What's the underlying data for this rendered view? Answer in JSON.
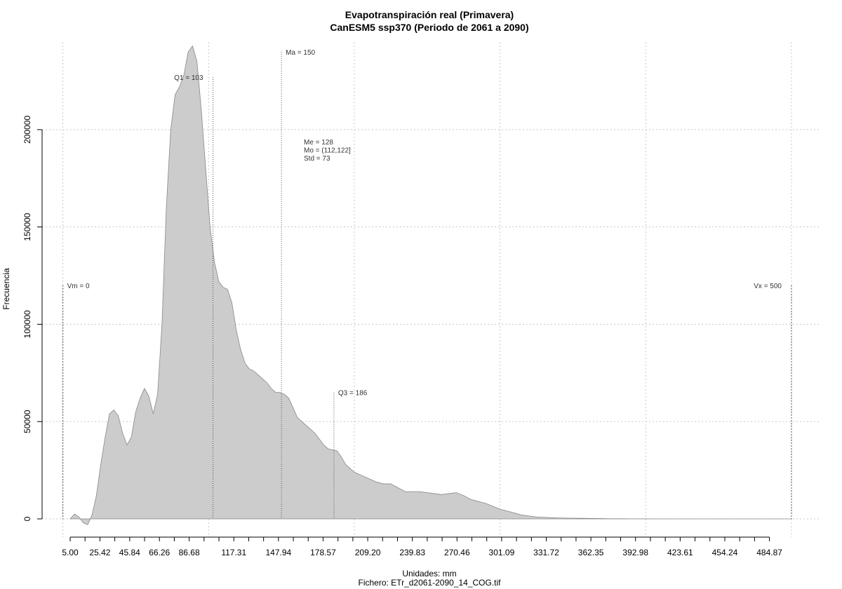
{
  "chart_data": {
    "type": "area",
    "title": "Evapotranspiración real (Primavera)",
    "subtitle": "CanESM5 ssp370 (Periodo de 2061 a 2090)",
    "xlabel": "Unidades: mm",
    "ylabel": "Frecuencia",
    "footer": "Fichero: ETr_d2061-2090_14_COG.tif",
    "xlim": [
      5.0,
      500.0
    ],
    "ylim": [
      0,
      245000
    ],
    "x_tick_labels": [
      "5.00",
      "25.42",
      "45.84",
      "66.26",
      "86.68",
      "117.31",
      "147.94",
      "178.57",
      "209.20",
      "239.83",
      "270.46",
      "301.09",
      "331.72",
      "362.35",
      "392.98",
      "423.61",
      "454.24",
      "484.87"
    ],
    "x_tick_values": [
      5.0,
      25.42,
      45.84,
      66.26,
      86.68,
      117.31,
      147.94,
      178.57,
      209.2,
      239.83,
      270.46,
      301.09,
      331.72,
      362.35,
      392.98,
      423.61,
      454.24,
      484.87
    ],
    "y_ticks": [
      0,
      50000,
      100000,
      150000,
      200000
    ],
    "y_tick_labels": [
      "0",
      "50000",
      "100000",
      "150000",
      "200000"
    ],
    "grid": true,
    "fill_color": "#cccccc",
    "outline_color": "#888888",
    "series": [
      {
        "x": [
          5,
          8,
          11,
          14,
          17,
          20,
          23,
          26,
          29,
          32,
          35,
          38,
          41,
          44,
          47,
          50,
          53,
          56,
          59,
          62,
          65,
          68,
          71,
          74,
          77,
          80,
          83,
          86,
          89,
          92,
          95,
          98,
          101,
          104,
          107,
          110,
          113,
          116,
          119,
          122,
          125,
          128,
          131,
          134,
          137,
          140,
          143,
          146,
          149,
          152,
          155,
          158,
          161,
          164,
          167,
          170,
          173,
          176,
          179,
          182,
          185,
          188,
          191,
          194,
          197,
          200,
          203,
          206,
          209,
          215,
          220,
          225,
          230,
          235,
          240,
          245,
          250,
          255,
          260,
          265,
          270,
          275,
          280,
          285,
          290,
          295,
          300,
          305,
          310,
          315,
          320,
          325,
          330,
          335,
          340,
          345,
          350,
          355,
          360,
          365,
          370,
          375,
          380,
          385,
          390,
          395,
          400,
          410,
          420,
          430,
          440,
          450,
          460,
          470,
          480,
          490,
          500
        ],
        "y": [
          0,
          2500,
          1000,
          -2000,
          -3000,
          2000,
          12000,
          28000,
          42000,
          54000,
          56000,
          53000,
          44000,
          38000,
          42000,
          55000,
          62000,
          67000,
          63000,
          54000,
          64000,
          100000,
          160000,
          200000,
          218000,
          222000,
          228000,
          240000,
          243000,
          235000,
          210000,
          180000,
          150000,
          132000,
          122000,
          119000,
          118000,
          111000,
          97000,
          87000,
          80000,
          77000,
          76000,
          74000,
          72000,
          70000,
          67000,
          65000,
          65000,
          64000,
          62000,
          57000,
          52000,
          50000,
          48000,
          46000,
          44000,
          41000,
          38000,
          36000,
          35500,
          35000,
          32000,
          28000,
          26000,
          24000,
          23000,
          22000,
          21000,
          19000,
          18000,
          18000,
          16000,
          14000,
          14000,
          14000,
          13500,
          13000,
          12500,
          13000,
          13500,
          12000,
          10000,
          9000,
          8000,
          6500,
          5000,
          4000,
          3000,
          2000,
          1500,
          1000,
          800,
          600,
          500,
          400,
          350,
          300,
          250,
          200,
          150,
          100,
          80,
          60,
          40,
          30,
          20,
          10,
          5,
          0,
          0,
          0,
          0,
          0,
          0,
          0,
          0
        ],
        "comment_x_units": "mm"
      }
    ],
    "annotations": [
      {
        "label": "Vm = 0",
        "x": 0,
        "y": 120000,
        "anchor": "start"
      },
      {
        "label": "Q1 = 103",
        "x": 103,
        "y": 227000,
        "anchor": "end"
      },
      {
        "label": "Ma = 150",
        "x": 150,
        "y": 240000,
        "anchor": "start"
      },
      {
        "label": "Q3 = 186",
        "x": 186,
        "y": 65000,
        "anchor": "start"
      },
      {
        "label": "Vx = 500",
        "x": 500,
        "y": 120000,
        "anchor": "end"
      }
    ],
    "stats": [
      "Me = 128",
      "Mo = (112,122]",
      "Std = 73"
    ]
  }
}
